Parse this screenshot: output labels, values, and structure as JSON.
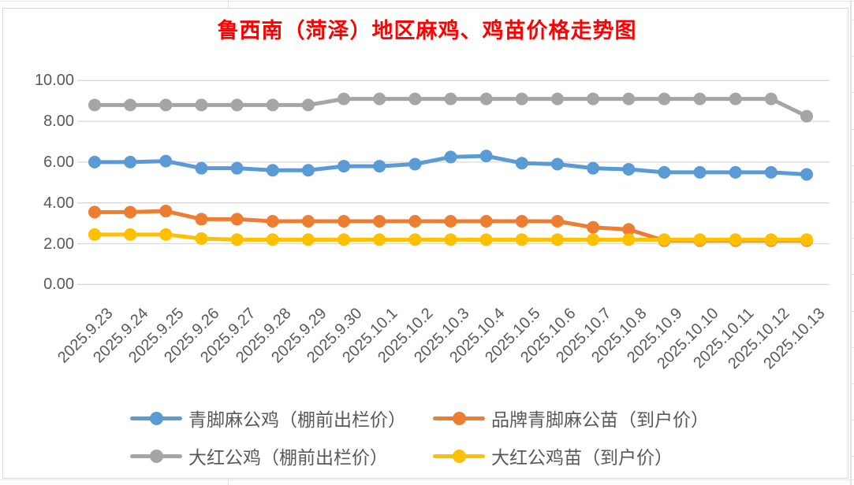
{
  "title": {
    "text": "鲁西南（菏泽）地区麻鸡、鸡苗价格走势图",
    "color": "#FF0000"
  },
  "chart_data": {
    "type": "line",
    "title": "鲁西南（菏泽）地区麻鸡、鸡苗价格走势图",
    "categories": [
      "2025.9.23",
      "2025.9.24",
      "2025.9.25",
      "2025.9.26",
      "2025.9.27",
      "2025.9.28",
      "2025.9.29",
      "2025.9.30",
      "2025.10.1",
      "2025.10.2",
      "2025.10.3",
      "2025.10.4",
      "2025.10.5",
      "2025.10.6",
      "2025.10.7",
      "2025.10.8",
      "2025.10.9",
      "2025.10.10",
      "2025.10.11",
      "2025.10.12",
      "2025.10.13"
    ],
    "series": [
      {
        "name": "青脚麻公鸡（棚前出栏价）",
        "color": "#5B9BD5",
        "values": [
          6.0,
          6.0,
          6.05,
          5.7,
          5.7,
          5.6,
          5.6,
          5.8,
          5.8,
          5.9,
          6.25,
          6.3,
          5.95,
          5.9,
          5.7,
          5.65,
          5.5,
          5.5,
          5.5,
          5.5,
          5.4
        ]
      },
      {
        "name": "品牌青脚麻公苗（到户价）",
        "color": "#ED7D31",
        "values": [
          3.55,
          3.55,
          3.6,
          3.2,
          3.2,
          3.1,
          3.1,
          3.1,
          3.1,
          3.1,
          3.1,
          3.1,
          3.1,
          3.1,
          2.8,
          2.7,
          2.15,
          2.15,
          2.15,
          2.15,
          2.15
        ]
      },
      {
        "name": "大红公鸡（棚前出栏价）",
        "color": "#A5A5A5",
        "values": [
          8.8,
          8.8,
          8.8,
          8.8,
          8.8,
          8.8,
          8.8,
          9.1,
          9.1,
          9.1,
          9.1,
          9.1,
          9.1,
          9.1,
          9.1,
          9.1,
          9.1,
          9.1,
          9.1,
          9.1,
          8.25
        ]
      },
      {
        "name": "大红公鸡苗（到户价）",
        "color": "#FFC000",
        "values": [
          2.45,
          2.45,
          2.45,
          2.25,
          2.2,
          2.2,
          2.2,
          2.2,
          2.2,
          2.2,
          2.2,
          2.2,
          2.2,
          2.2,
          2.2,
          2.2,
          2.2,
          2.2,
          2.2,
          2.2,
          2.2
        ]
      }
    ],
    "ylim": [
      0,
      10
    ],
    "ytick_step": 2,
    "ytick_labels": [
      "0.00",
      "2.00",
      "4.00",
      "6.00",
      "8.00",
      "10.00"
    ],
    "grid": true,
    "legend_position": "bottom",
    "xlabel": "",
    "ylabel": ""
  },
  "colors": {
    "gridline": "#D9D9D9",
    "axis_text": "#595959",
    "frame_border": "#D9D9D9",
    "sheet_line": "#E2E2E2"
  }
}
